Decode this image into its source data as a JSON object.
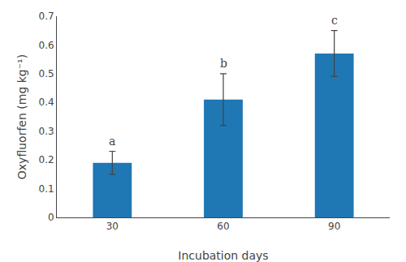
{
  "chart_data": {
    "type": "bar",
    "categories": [
      "30",
      "60",
      "90"
    ],
    "values": [
      0.19,
      0.41,
      0.57
    ],
    "errors": [
      0.04,
      0.09,
      0.08
    ],
    "annotations": [
      "a",
      "b",
      "c"
    ],
    "xlabel": "Incubation days",
    "ylabel": "Oxyfluorfen (mg kg⁻¹)",
    "ylim": [
      0,
      0.7
    ],
    "yticks": [
      0,
      0.1,
      0.2,
      0.3,
      0.4,
      0.5,
      0.6,
      0.7
    ],
    "grid": false
  }
}
